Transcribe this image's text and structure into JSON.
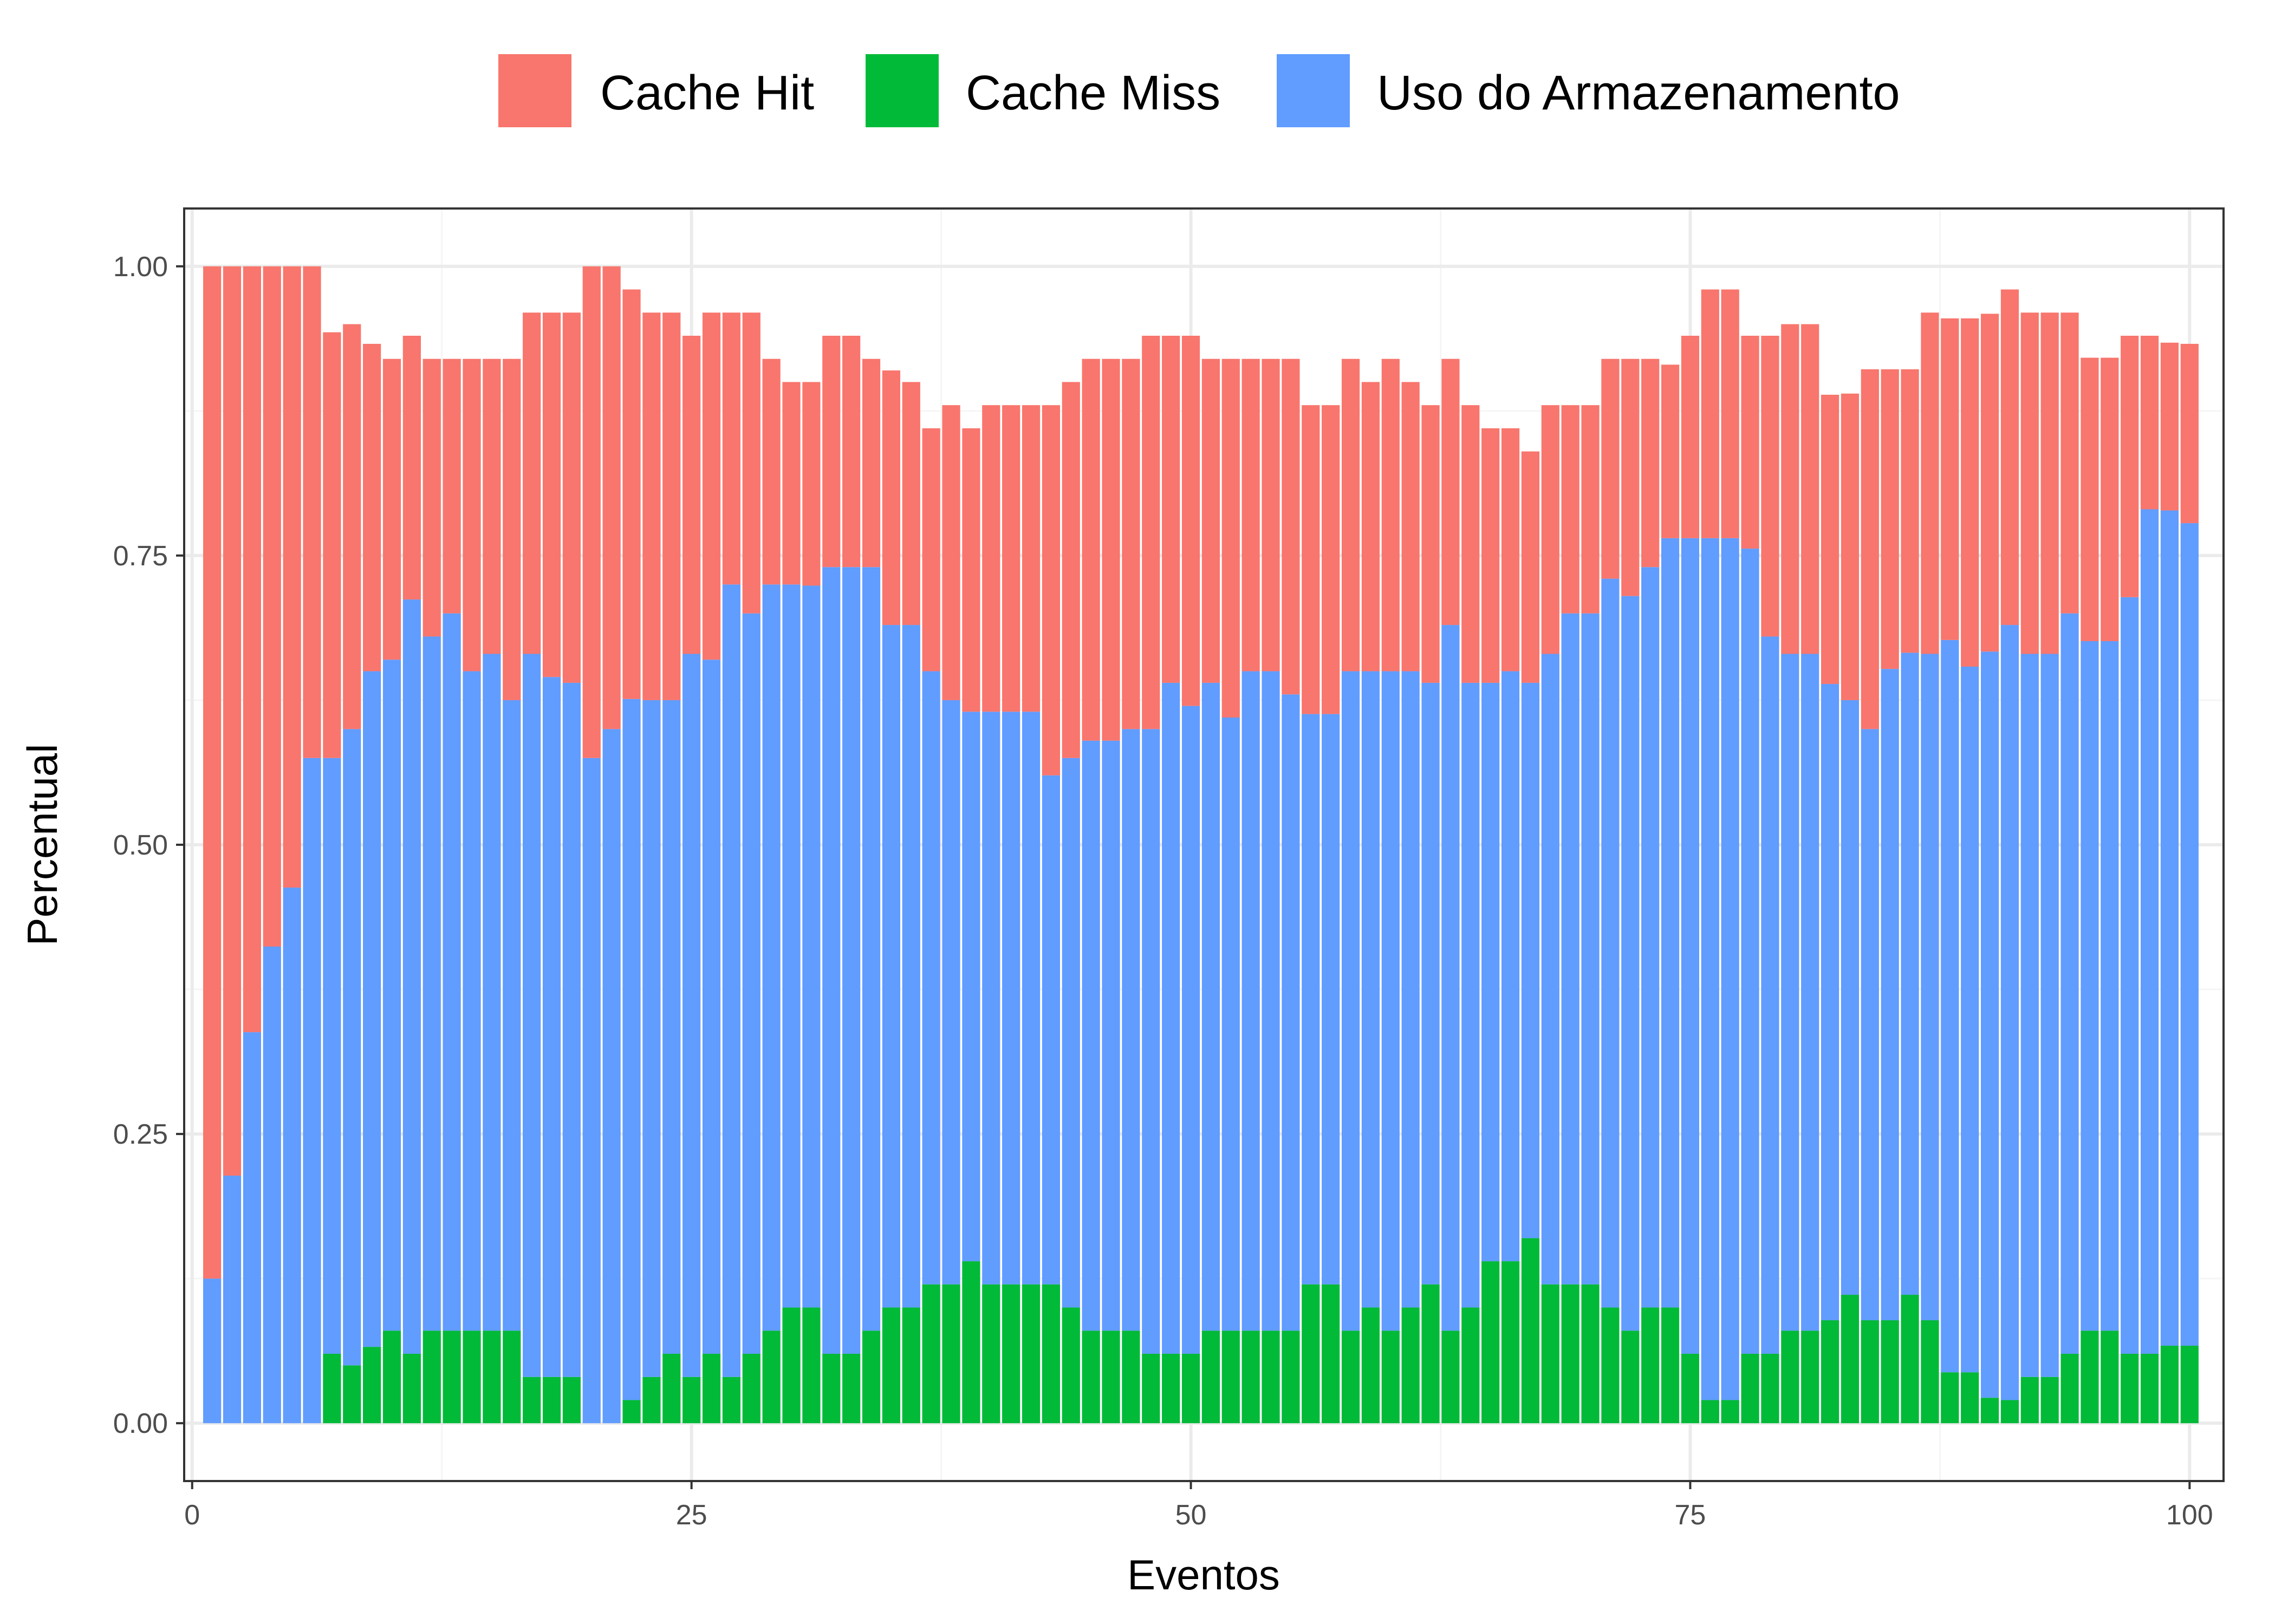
{
  "chart_data": {
    "type": "bar",
    "stacked": true,
    "xlabel": "Eventos",
    "ylabel": "Percentual",
    "xlim": [
      -0.4,
      101.7
    ],
    "ylim": [
      -0.05,
      1.05
    ],
    "x_ticks": [
      0,
      25,
      50,
      75,
      100
    ],
    "x_tick_labels": [
      "0",
      "25",
      "50",
      "75",
      "100"
    ],
    "y_ticks": [
      0,
      0.25,
      0.5,
      0.75,
      1.0
    ],
    "y_tick_labels": [
      "0.00",
      "0.25",
      "0.50",
      "0.75",
      "1.00"
    ],
    "grid": true,
    "legend_position": "top",
    "x": [
      1,
      2,
      3,
      4,
      5,
      6,
      7,
      8,
      9,
      10,
      11,
      12,
      13,
      14,
      15,
      16,
      17,
      18,
      19,
      20,
      21,
      22,
      23,
      24,
      25,
      26,
      27,
      28,
      29,
      30,
      31,
      32,
      33,
      34,
      35,
      36,
      37,
      38,
      39,
      40,
      41,
      42,
      43,
      44,
      45,
      46,
      47,
      48,
      49,
      50,
      51,
      52,
      53,
      54,
      55,
      56,
      57,
      58,
      59,
      60,
      61,
      62,
      63,
      64,
      65,
      66,
      67,
      68,
      69,
      70,
      71,
      72,
      73,
      74,
      75,
      76,
      77,
      78,
      79,
      80,
      81,
      82,
      83,
      84,
      85,
      86,
      87,
      88,
      89,
      90,
      91,
      92,
      93,
      94,
      95,
      96,
      97,
      98,
      99,
      100
    ],
    "series": [
      {
        "name": "Cache Miss",
        "color": "#00BA38",
        "values": [
          0,
          0,
          0,
          0,
          0,
          0,
          0.06,
          0.05,
          0.066,
          0.08,
          0.06,
          0.08,
          0.08,
          0.08,
          0.08,
          0.08,
          0.04,
          0.04,
          0.04,
          0,
          0,
          0.02,
          0.04,
          0.06,
          0.04,
          0.06,
          0.04,
          0.06,
          0.08,
          0.1,
          0.1,
          0.06,
          0.06,
          0.08,
          0.1,
          0.1,
          0.12,
          0.12,
          0.14,
          0.12,
          0.12,
          0.12,
          0.12,
          0.1,
          0.08,
          0.08,
          0.08,
          0.06,
          0.06,
          0.06,
          0.08,
          0.08,
          0.08,
          0.08,
          0.08,
          0.12,
          0.12,
          0.08,
          0.1,
          0.08,
          0.1,
          0.12,
          0.08,
          0.1,
          0.14,
          0.14,
          0.16,
          0.12,
          0.12,
          0.12,
          0.1,
          0.08,
          0.1,
          0.1,
          0.06,
          0.02,
          0.02,
          0.06,
          0.06,
          0.08,
          0.08,
          0.089,
          0.111,
          0.089,
          0.089,
          0.111,
          0.089,
          0.044,
          0.044,
          0.022,
          0.02,
          0.04,
          0.04,
          0.06,
          0.08,
          0.08,
          0.06,
          0.06,
          0.067,
          0.067
        ]
      },
      {
        "name": "Uso do Armazenamento",
        "color": "#619CFF",
        "values": [
          0.125,
          0.214,
          0.338,
          0.412,
          0.463,
          0.575,
          0.515,
          0.55,
          0.584,
          0.58,
          0.652,
          0.6,
          0.62,
          0.57,
          0.585,
          0.545,
          0.625,
          0.605,
          0.6,
          0.575,
          0.6,
          0.606,
          0.585,
          0.565,
          0.625,
          0.6,
          0.685,
          0.64,
          0.645,
          0.625,
          0.624,
          0.68,
          0.68,
          0.66,
          0.59,
          0.59,
          0.53,
          0.505,
          0.475,
          0.495,
          0.495,
          0.495,
          0.44,
          0.475,
          0.51,
          0.51,
          0.52,
          0.54,
          0.58,
          0.56,
          0.56,
          0.53,
          0.57,
          0.57,
          0.55,
          0.493,
          0.493,
          0.57,
          0.55,
          0.57,
          0.55,
          0.52,
          0.61,
          0.54,
          0.5,
          0.51,
          0.48,
          0.545,
          0.58,
          0.58,
          0.63,
          0.635,
          0.64,
          0.665,
          0.705,
          0.745,
          0.745,
          0.696,
          0.62,
          0.585,
          0.585,
          0.55,
          0.514,
          0.511,
          0.563,
          0.555,
          0.576,
          0.633,
          0.61,
          0.645,
          0.67,
          0.625,
          0.625,
          0.64,
          0.596,
          0.596,
          0.654,
          0.73,
          0.722,
          0.711
        ]
      },
      {
        "name": "Cache Hit",
        "color": "#F8766D",
        "values": [
          0.875,
          0.786,
          0.662,
          0.588,
          0.537,
          0.425,
          0.368,
          0.35,
          0.283,
          0.26,
          0.228,
          0.24,
          0.22,
          0.27,
          0.255,
          0.295,
          0.295,
          0.315,
          0.32,
          0.425,
          0.4,
          0.354,
          0.335,
          0.335,
          0.275,
          0.3,
          0.235,
          0.26,
          0.195,
          0.175,
          0.176,
          0.2,
          0.2,
          0.18,
          0.22,
          0.21,
          0.21,
          0.255,
          0.245,
          0.265,
          0.265,
          0.265,
          0.32,
          0.325,
          0.33,
          0.33,
          0.32,
          0.34,
          0.3,
          0.32,
          0.28,
          0.31,
          0.27,
          0.27,
          0.29,
          0.267,
          0.267,
          0.27,
          0.25,
          0.27,
          0.25,
          0.24,
          0.23,
          0.24,
          0.22,
          0.21,
          0.2,
          0.215,
          0.18,
          0.18,
          0.19,
          0.205,
          0.18,
          0.15,
          0.175,
          0.215,
          0.215,
          0.184,
          0.26,
          0.285,
          0.285,
          0.25,
          0.265,
          0.311,
          0.259,
          0.245,
          0.295,
          0.278,
          0.301,
          0.292,
          0.29,
          0.295,
          0.295,
          0.26,
          0.245,
          0.245,
          0.226,
          0.15,
          0.145,
          0.155
        ]
      }
    ],
    "legend": [
      {
        "label": "Cache Hit",
        "color": "#F8766D"
      },
      {
        "label": "Cache Miss",
        "color": "#00BA38"
      },
      {
        "label": "Uso do Armazenamento",
        "color": "#619CFF"
      }
    ]
  }
}
